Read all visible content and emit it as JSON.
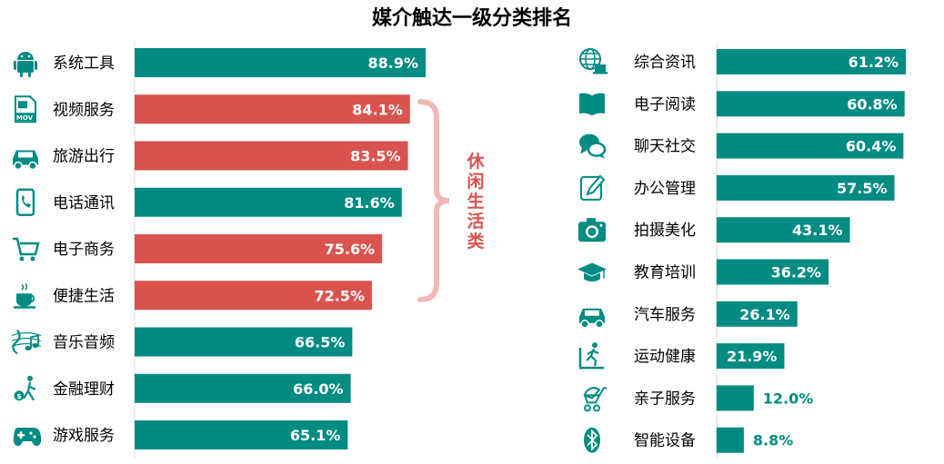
{
  "chart_data": [
    {
      "type": "bar",
      "orientation": "horizontal",
      "title": "媒介触达一级分类排名",
      "categories": [
        "系统工具",
        "视频服务",
        "旅游出行",
        "电话通讯",
        "电子商务",
        "便捷生活",
        "音乐音频",
        "金融理财",
        "游戏服务"
      ],
      "values": [
        88.9,
        84.1,
        83.5,
        81.6,
        75.6,
        72.5,
        66.5,
        66.0,
        65.1
      ],
      "value_labels": [
        "88.9%",
        "84.1%",
        "83.5%",
        "81.6%",
        "75.6%",
        "72.5%",
        "66.5%",
        "66.0%",
        "65.1%"
      ],
      "bar_colors": [
        "#008B83",
        "#D9534F",
        "#D9534F",
        "#008B83",
        "#D9534F",
        "#D9534F",
        "#008B83",
        "#008B83",
        "#008B83"
      ],
      "icons": [
        "android-icon",
        "video-icon",
        "car-icon",
        "phone-icon",
        "cart-icon",
        "coffee-icon",
        "music-icon",
        "finance-icon",
        "gamepad-icon"
      ],
      "annotation": {
        "text": "休闲生活类",
        "color": "#D9534F",
        "brace_color": "#F4B6B4",
        "spans": [
          "视频服务",
          "便捷生活"
        ]
      },
      "xlim": [
        0,
        100
      ],
      "grid": false
    },
    {
      "type": "bar",
      "orientation": "horizontal",
      "categories": [
        "综合资讯",
        "电子阅读",
        "聊天社交",
        "办公管理",
        "拍摄美化",
        "教育培训",
        "汽车服务",
        "运动健康",
        "亲子服务",
        "智能设备"
      ],
      "values": [
        61.2,
        60.8,
        60.4,
        57.5,
        43.1,
        36.2,
        26.1,
        21.9,
        12.0,
        8.8
      ],
      "value_labels": [
        "61.2%",
        "60.8%",
        "60.4%",
        "57.5%",
        "43.1%",
        "36.2%",
        "26.1%",
        "21.9%",
        "12.0%",
        "8.8%"
      ],
      "bar_colors": [
        "#008B83",
        "#008B83",
        "#008B83",
        "#008B83",
        "#008B83",
        "#008B83",
        "#008B83",
        "#008B83",
        "#008B83",
        "#008B83"
      ],
      "icons": [
        "globe-icon",
        "book-icon",
        "chat-icon",
        "edit-icon",
        "camera-icon",
        "graduation-cap-icon",
        "car-icon",
        "treadmill-icon",
        "stroller-icon",
        "bluetooth-icon"
      ],
      "xlim": [
        0,
        100
      ],
      "grid": false
    }
  ],
  "colors": {
    "teal": "#008B83",
    "red": "#D9534F",
    "label_inside": "#FFFFFF",
    "label_outside": "#008B83"
  }
}
